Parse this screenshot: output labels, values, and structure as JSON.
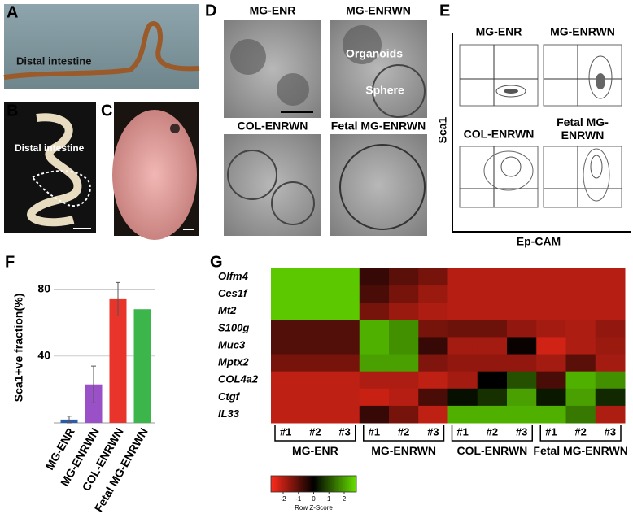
{
  "panel_labels": [
    "A",
    "B",
    "C",
    "D",
    "E",
    "F",
    "G"
  ],
  "photos": {
    "A": "Distal intestine",
    "B": "Distal intestine"
  },
  "micrographs": {
    "titles": [
      "MG-ENR",
      "MG-ENRWN",
      "COL-ENRWN",
      "Fetal MG-ENRWN"
    ],
    "labels": [
      "Organoids",
      "Sphere"
    ]
  },
  "flow": {
    "titles": [
      "MG-ENR",
      "MG-ENRWN",
      "COL-ENRWN",
      "Fetal MG-ENRWN"
    ],
    "y_label": "Sca1",
    "x_label": "Ep-CAM"
  },
  "chart_data": [
    {
      "type": "bar",
      "ylabel": "Sca1+ve fraction(%)",
      "categories": [
        "MG-ENR",
        "MG-ENRWN",
        "COL-ENRWN",
        "Fetal MG-ENRWN"
      ],
      "values": [
        2,
        23,
        74,
        68
      ],
      "errors": [
        2,
        11,
        10,
        null
      ],
      "colors": [
        "#2b5cab",
        "#9a50c6",
        "#e8342a",
        "#3cb54b"
      ],
      "ylim": [
        0,
        90
      ],
      "yticks": [
        40,
        80
      ],
      "grid": true
    },
    {
      "type": "heatmap",
      "rows": [
        "Olfm4",
        "Ces1f",
        "Mt2",
        "S100g",
        "Muc3",
        "Mptx2",
        "COL4a2",
        "Ctgf",
        "IL33"
      ],
      "columns": [
        "#1",
        "#2",
        "#3",
        "#1",
        "#2",
        "#3",
        "#1",
        "#2",
        "#3",
        "#1",
        "#2",
        "#3"
      ],
      "groups": [
        "MG-ENR",
        "MG-ENRWN",
        "COL-ENRWN",
        "Fetal MG-ENRWN"
      ],
      "values": [
        [
          2.5,
          2.5,
          2.5,
          -0.6,
          -1.0,
          -1.3,
          -2,
          -2,
          -2,
          -2,
          -2,
          -2
        ],
        [
          2.5,
          2.5,
          2.5,
          -0.8,
          -1.3,
          -1.7,
          -2,
          -2,
          -2,
          -2,
          -2,
          -2
        ],
        [
          2.5,
          2.5,
          2.5,
          -1.3,
          -1.7,
          -1.9,
          -2,
          -2,
          -2,
          -2,
          -2,
          -2
        ],
        [
          -0.9,
          -0.9,
          -0.9,
          2.2,
          1.8,
          -1.3,
          -1.2,
          -1.2,
          -1.6,
          -1.8,
          -1.9,
          -1.6
        ],
        [
          -0.9,
          -0.9,
          -0.9,
          2.2,
          1.8,
          -0.6,
          -1.8,
          -1.8,
          -0.1,
          -2.3,
          -1.9,
          -1.7
        ],
        [
          -1.3,
          -1.3,
          -1.3,
          2.0,
          2.0,
          -1.4,
          -1.6,
          -1.6,
          -1.6,
          -1.8,
          -1.0,
          -1.8
        ],
        [
          -2.1,
          -2.1,
          -2.1,
          -1.9,
          -1.9,
          -2.1,
          -1.8,
          0,
          1.0,
          -0.8,
          2.2,
          1.8
        ],
        [
          -2.1,
          -2.1,
          -2.1,
          -2.2,
          -2,
          -0.8,
          0.2,
          0.6,
          2.0,
          0.3,
          2.0,
          0.5
        ],
        [
          -2.1,
          -2.1,
          -2.1,
          -0.6,
          -1.3,
          -2.1,
          2.2,
          2.2,
          2.2,
          2.2,
          1.5,
          -1.9
        ]
      ],
      "zlim": [
        -2.8,
        2.8
      ],
      "zticks": [
        -2,
        -1,
        0,
        1,
        2
      ],
      "colormap": [
        "#ff2a1a",
        "#000000",
        "#66e000"
      ],
      "colorbar_label": "Row Z-Score"
    }
  ]
}
